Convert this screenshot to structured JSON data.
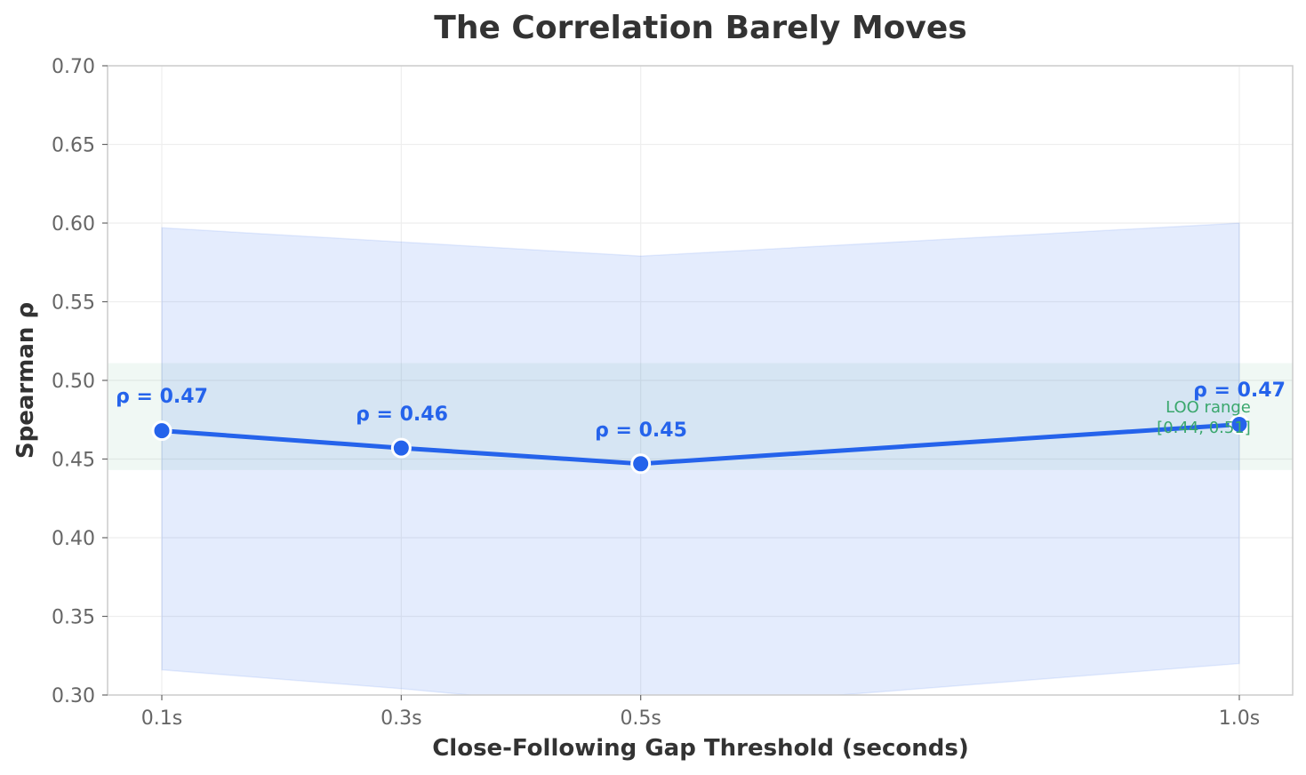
{
  "chart_data": {
    "type": "line",
    "title": "The Correlation Barely Moves",
    "xlabel": "Close-Following Gap Threshold (seconds)",
    "ylabel": "Spearman ρ",
    "x": [
      0.1,
      0.3,
      0.5,
      1.0
    ],
    "x_tick_labels": [
      "0.1s",
      "0.3s",
      "0.5s",
      "1.0s"
    ],
    "ylim": [
      0.3,
      0.7
    ],
    "y_ticks": [
      0.3,
      0.35,
      0.4,
      0.45,
      0.5,
      0.55,
      0.6,
      0.65,
      0.7
    ],
    "y_tick_labels": [
      "0.30",
      "0.35",
      "0.40",
      "0.45",
      "0.50",
      "0.55",
      "0.60",
      "0.65",
      "0.70"
    ],
    "grid": true,
    "legend": null,
    "series": [
      {
        "name": "Spearman ρ",
        "values": [
          0.468,
          0.457,
          0.447,
          0.472
        ],
        "labels": [
          "ρ = 0.47",
          "ρ = 0.46",
          "ρ = 0.45",
          "ρ = 0.47"
        ],
        "color": "#2563eb",
        "ci_lower": [
          0.316,
          0.304,
          0.29,
          0.32
        ],
        "ci_upper": [
          0.597,
          0.588,
          0.579,
          0.6
        ],
        "ci_color": "#dbe6fb"
      }
    ],
    "reference_band": {
      "name": "LOO range",
      "lower": 0.443,
      "upper": 0.511,
      "label_line1": "LOO range",
      "label_line2": "[0.44, 0.51]",
      "color": "#3aa76d"
    }
  }
}
